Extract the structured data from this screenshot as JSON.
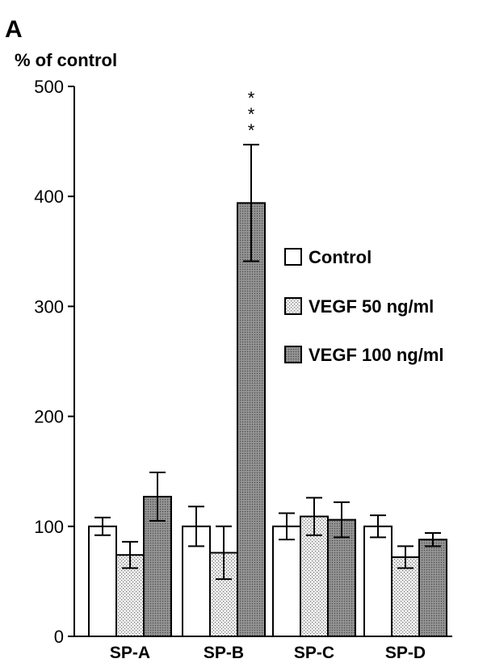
{
  "panel_label": "A",
  "chart_data": {
    "type": "bar",
    "title": "",
    "xlabel": "",
    "ylabel": "% of control",
    "ylim": [
      0,
      500
    ],
    "yticks": [
      0,
      100,
      200,
      300,
      400,
      500
    ],
    "categories": [
      "SP-A",
      "SP-B",
      "SP-C",
      "SP-D"
    ],
    "series": [
      {
        "name": "Control",
        "pattern": "white",
        "values": [
          100,
          100,
          100,
          100
        ],
        "errors": [
          8,
          18,
          12,
          10
        ]
      },
      {
        "name": "VEGF 50 ng/ml",
        "pattern": "dotted",
        "values": [
          74,
          76,
          109,
          72
        ],
        "errors": [
          12,
          24,
          17,
          10
        ]
      },
      {
        "name": "VEGF 100 ng/ml",
        "pattern": "dark",
        "values": [
          127,
          394,
          106,
          88
        ],
        "errors": [
          22,
          53,
          16,
          6
        ]
      }
    ],
    "annotations": [
      {
        "category": "SP-B",
        "series": "VEGF 100 ng/ml",
        "text": "***"
      }
    ],
    "legend_position": "right",
    "grid": false
  },
  "colors": {
    "control_fill": "#ffffff",
    "vegf50_fill": "#e6e6e6",
    "vegf100_fill": "#808080",
    "axis": "#000000"
  }
}
